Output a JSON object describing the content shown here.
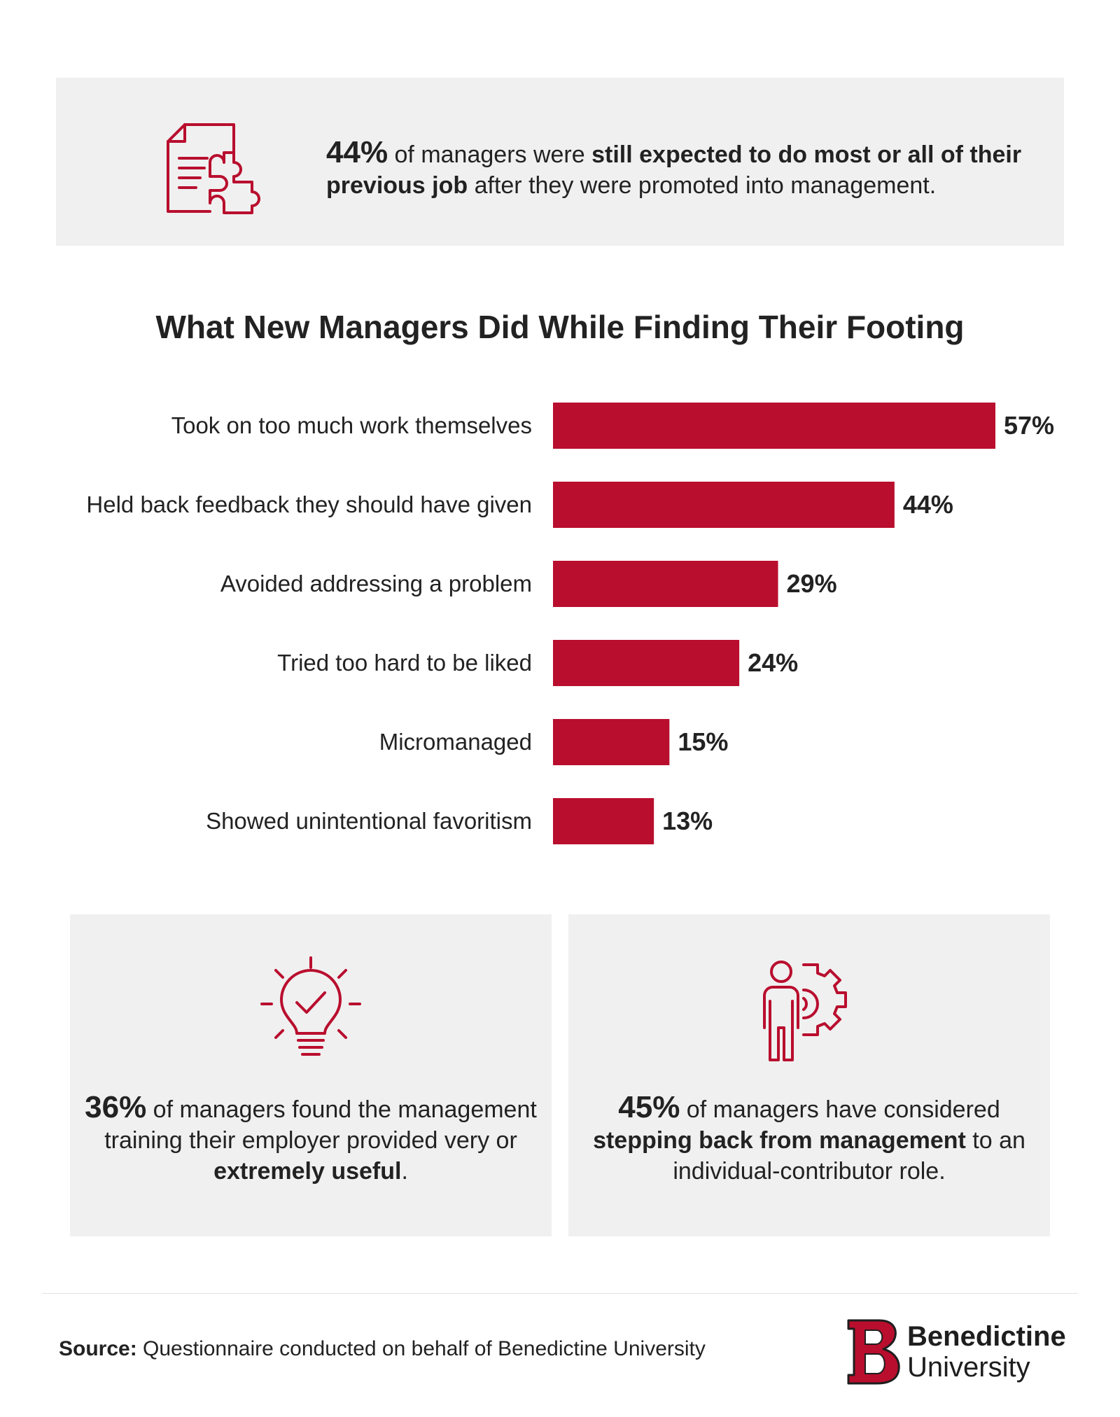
{
  "colors": {
    "accent": "#b90e2e",
    "card": "#f0f0f0",
    "text": "#222222"
  },
  "top_card": {
    "icon": "document-puzzle-icon",
    "pct": "44%",
    "t1": " of managers were ",
    "b1": "still expected to do most or all of their previous job",
    "t2": " after they were promoted into management."
  },
  "chart_data": {
    "type": "bar",
    "orientation": "horizontal",
    "title": "What New Managers Did While Finding Their Footing",
    "categories": [
      "Took on too much work themselves",
      "Held back feedback they should have given",
      "Avoided addressing a problem",
      "Tried too hard to be liked",
      "Micromanaged",
      "Showed unintentional favoritism"
    ],
    "values": [
      57,
      44,
      29,
      24,
      15,
      13
    ],
    "value_labels": [
      "57%",
      "44%",
      "29%",
      "24%",
      "15%",
      "13%"
    ],
    "unit": "%",
    "xlim": [
      0,
      57
    ],
    "grid": false,
    "legend": "none"
  },
  "left_card": {
    "icon": "lightbulb-check-icon",
    "pct": "36%",
    "t1": " of managers found the management training their employer provided very or ",
    "b1": "extremely useful",
    "t2": "."
  },
  "right_card": {
    "icon": "person-gear-icon",
    "pct": "45%",
    "t1": " of managers have considered ",
    "b1": "stepping back from management",
    "t2": " to an individual-contributor role."
  },
  "footer": {
    "source_label": "Source:",
    "source_text": " Questionnaire conducted on behalf of Benedictine University",
    "logo_icon": "benedictine-b-logo-icon",
    "logo_name": "Benedictine",
    "logo_sub": "University"
  }
}
